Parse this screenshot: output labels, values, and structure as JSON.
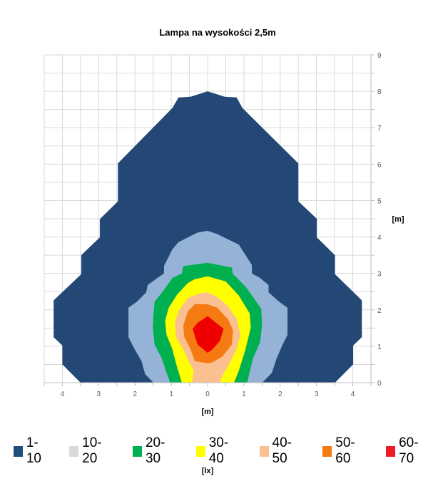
{
  "chart_data": {
    "type": "contour",
    "title": "Lampa na wysokości 2,5m",
    "xlabel": "[m]",
    "ylabel": "[m]",
    "legend_title": "[lx]",
    "xlim": [
      -4.5,
      4.5
    ],
    "ylim": [
      0,
      9
    ],
    "x_ticks": [
      -4,
      -3,
      -2,
      -1,
      0,
      1,
      2,
      3,
      4
    ],
    "x_tick_labels": [
      "4",
      "3",
      "2",
      "1",
      "0",
      "1",
      "2",
      "3",
      "4"
    ],
    "y_ticks": [
      0,
      1,
      2,
      3,
      4,
      5,
      6,
      7,
      8,
      9
    ],
    "y_tick_labels": [
      "0",
      "1",
      "2",
      "3",
      "4",
      "5",
      "6",
      "7",
      "8",
      "9"
    ],
    "grid": true,
    "grid_step": 0.5,
    "legend_position": "bottom",
    "levels": [
      {
        "label": "1-10",
        "legend_color": "#1f4e79",
        "fill": "#234876",
        "polygon": [
          [
            -3.5,
            0
          ],
          [
            -4.0,
            0.5
          ],
          [
            -4.0,
            1.02
          ],
          [
            -4.24,
            1.25
          ],
          [
            -4.24,
            2.26
          ],
          [
            -3.48,
            2.98
          ],
          [
            -3.48,
            3.5
          ],
          [
            -2.97,
            3.99
          ],
          [
            -2.97,
            4.49
          ],
          [
            -2.47,
            4.98
          ],
          [
            -2.47,
            6.02
          ],
          [
            -0.97,
            7.54
          ],
          [
            -0.8,
            7.83
          ],
          [
            -0.47,
            7.85
          ],
          [
            0,
            8.0
          ],
          [
            0.47,
            7.85
          ],
          [
            0.8,
            7.83
          ],
          [
            0.96,
            7.54
          ],
          [
            2.5,
            6.02
          ],
          [
            2.5,
            4.98
          ],
          [
            3.01,
            4.5
          ],
          [
            3.01,
            3.99
          ],
          [
            3.51,
            3.5
          ],
          [
            3.51,
            2.98
          ],
          [
            4.25,
            2.26
          ],
          [
            4.25,
            1.25
          ],
          [
            4.01,
            1.02
          ],
          [
            4.01,
            0.5
          ],
          [
            3.51,
            0
          ]
        ]
      },
      {
        "label": "10-20",
        "legend_color": "#d9d9d9",
        "fill": "#95b3d7",
        "polygon": [
          [
            -1.49,
            0
          ],
          [
            -1.72,
            0.23
          ],
          [
            -1.82,
            0.59
          ],
          [
            -2.01,
            0.92
          ],
          [
            -2.18,
            1.25
          ],
          [
            -2.18,
            2.06
          ],
          [
            -1.95,
            2.22
          ],
          [
            -1.69,
            2.48
          ],
          [
            -1.65,
            2.68
          ],
          [
            -1.39,
            2.87
          ],
          [
            -1.2,
            3.0
          ],
          [
            -1.2,
            3.2
          ],
          [
            -0.97,
            3.66
          ],
          [
            -0.8,
            3.86
          ],
          [
            -0.28,
            4.12
          ],
          [
            0,
            4.17
          ],
          [
            0.27,
            4.08
          ],
          [
            0.86,
            3.79
          ],
          [
            1.22,
            3.23
          ],
          [
            1.22,
            3.0
          ],
          [
            1.45,
            2.87
          ],
          [
            1.68,
            2.68
          ],
          [
            1.68,
            2.48
          ],
          [
            1.97,
            2.22
          ],
          [
            2.2,
            2.06
          ],
          [
            2.2,
            1.31
          ],
          [
            2.07,
            1.05
          ],
          [
            1.9,
            0.66
          ],
          [
            1.77,
            0.27
          ],
          [
            1.51,
            0
          ]
        ]
      },
      {
        "label": "20-30",
        "legend_color": "#00b050",
        "fill": "#00b050",
        "polygon": [
          [
            -1.03,
            0
          ],
          [
            -1.13,
            0.27
          ],
          [
            -1.26,
            0.66
          ],
          [
            -1.46,
            1.05
          ],
          [
            -1.51,
            1.51
          ],
          [
            -1.49,
            1.9
          ],
          [
            -1.46,
            2.22
          ],
          [
            -1.2,
            2.55
          ],
          [
            -0.97,
            2.87
          ],
          [
            -0.71,
            3.0
          ],
          [
            -0.67,
            3.2
          ],
          [
            0,
            3.29
          ],
          [
            0.67,
            3.16
          ],
          [
            0.69,
            3.0
          ],
          [
            1.06,
            2.62
          ],
          [
            1.48,
            2.03
          ],
          [
            1.5,
            1.57
          ],
          [
            1.45,
            1.12
          ],
          [
            1.25,
            0.66
          ],
          [
            1.09,
            0
          ]
        ]
      },
      {
        "label": "30-40",
        "legend_color": "#ffff00",
        "fill": "#ffff00",
        "polygon": [
          [
            -0.71,
            0
          ],
          [
            -0.77,
            0.2
          ],
          [
            -0.87,
            0.53
          ],
          [
            -0.97,
            0.92
          ],
          [
            -1.13,
            1.31
          ],
          [
            -1.17,
            1.7
          ],
          [
            -1.07,
            2.06
          ],
          [
            -0.84,
            2.42
          ],
          [
            -0.54,
            2.74
          ],
          [
            -0.35,
            2.84
          ],
          [
            0,
            2.92
          ],
          [
            0.5,
            2.78
          ],
          [
            0.86,
            2.39
          ],
          [
            1.16,
            1.9
          ],
          [
            1.19,
            1.51
          ],
          [
            1.03,
            0.86
          ],
          [
            0.86,
            0.33
          ],
          [
            0.73,
            0
          ]
        ]
      },
      {
        "label": "40-50",
        "legend_color": "#fac090",
        "fill": "#fac090",
        "polygon": [
          [
            -0.43,
            0
          ],
          [
            -0.38,
            0.33
          ],
          [
            -0.51,
            0.56
          ],
          [
            -0.67,
            0.92
          ],
          [
            -0.87,
            1.25
          ],
          [
            -0.9,
            1.64
          ],
          [
            -0.8,
            1.97
          ],
          [
            -0.54,
            2.33
          ],
          [
            -0.22,
            2.45
          ],
          [
            0,
            2.48
          ],
          [
            0.27,
            2.35
          ],
          [
            0.54,
            2.12
          ],
          [
            0.8,
            1.76
          ],
          [
            0.9,
            1.31
          ],
          [
            0.8,
            0.92
          ],
          [
            0.64,
            0.59
          ],
          [
            0.41,
            0.2
          ],
          [
            0.34,
            0
          ]
        ]
      },
      {
        "label": "50-60",
        "legend_color": "#f57a12",
        "fill": "#f57a12",
        "polygon": [
          [
            0,
            0.53
          ],
          [
            -0.35,
            0.59
          ],
          [
            -0.47,
            0.92
          ],
          [
            -0.64,
            1.25
          ],
          [
            -0.67,
            1.57
          ],
          [
            -0.54,
            1.96
          ],
          [
            -0.35,
            2.16
          ],
          [
            0,
            2.15
          ],
          [
            0.27,
            2.06
          ],
          [
            0.57,
            1.73
          ],
          [
            0.7,
            1.44
          ],
          [
            0.67,
            1.05
          ],
          [
            0.41,
            0.72
          ],
          [
            0.14,
            0.56
          ]
        ]
      },
      {
        "label": "60-70",
        "legend_color": "#ed1c24",
        "fill": "#ee0000",
        "polygon": [
          [
            0,
            0.82
          ],
          [
            -0.28,
            1.05
          ],
          [
            -0.41,
            1.48
          ],
          [
            -0.28,
            1.64
          ],
          [
            0,
            1.83
          ],
          [
            0.44,
            1.48
          ],
          [
            0.34,
            1.15
          ],
          [
            0.14,
            0.92
          ]
        ]
      }
    ]
  }
}
